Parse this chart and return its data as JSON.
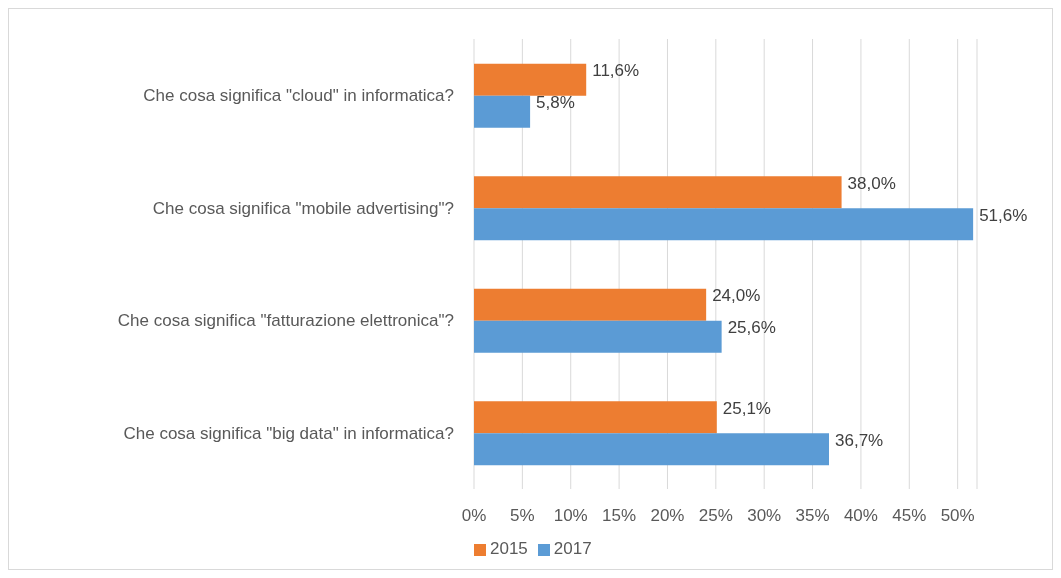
{
  "chart_data": {
    "type": "bar",
    "orientation": "horizontal",
    "categories": [
      "Che cosa significa \"cloud\" in informatica?",
      "Che cosa significa \"mobile advertising\"?",
      "Che cosa significa \"fatturazione elettronica\"?",
      "Che cosa significa \"big data\" in informatica?"
    ],
    "series": [
      {
        "name": "2015",
        "color": "#ed7d31",
        "values": [
          11.6,
          38.0,
          24.0,
          25.1
        ],
        "value_labels": [
          "11,6%",
          "38,0%",
          "24,0%",
          "25,1%"
        ]
      },
      {
        "name": "2017",
        "color": "#5b9bd5",
        "values": [
          5.8,
          51.6,
          25.6,
          36.7
        ],
        "value_labels": [
          "5,8%",
          "51,6%",
          "25,6%",
          "36,7%"
        ]
      }
    ],
    "xlim": [
      0,
      52
    ],
    "xticks": [
      {
        "value": 0,
        "label": "0%"
      },
      {
        "value": 5,
        "label": "5%"
      },
      {
        "value": 10,
        "label": "10%"
      },
      {
        "value": 15,
        "label": "15%"
      },
      {
        "value": 20,
        "label": "20%"
      },
      {
        "value": 25,
        "label": "25%"
      },
      {
        "value": 30,
        "label": "30%"
      },
      {
        "value": 35,
        "label": "35%"
      },
      {
        "value": 40,
        "label": "40%"
      },
      {
        "value": 45,
        "label": "45%"
      },
      {
        "value": 50,
        "label": "50%"
      }
    ],
    "grid": "x",
    "legend": "bottom"
  }
}
